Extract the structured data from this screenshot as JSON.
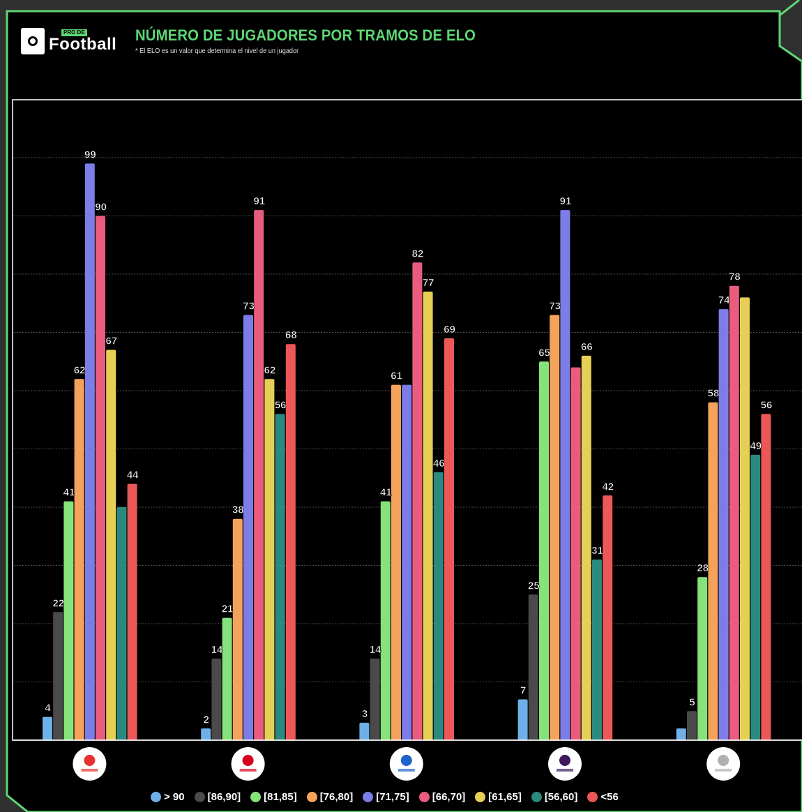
{
  "brand": {
    "name": "Football",
    "tag": "PRO DE"
  },
  "chart_data": {
    "type": "bar",
    "title": "NÚMERO DE JUGADORES POR TRAMOS DE ELO",
    "subtitle": "* El ELO es un valor que determina el nivel de un jugador",
    "xlabel": "",
    "ylabel": "",
    "ylim": [
      0,
      110
    ],
    "grid": true,
    "legend_position": "bottom",
    "categories": [
      "LaLiga Santander",
      "Bundesliga",
      "Serie A",
      "Premier League",
      "Ligue 1"
    ],
    "category_icons": [
      "laliga-logo-icon",
      "bundesliga-logo-icon",
      "serie-a-logo-icon",
      "premier-league-logo-icon",
      "ligue-1-logo-icon"
    ],
    "series": [
      {
        "name": "> 90",
        "color": "#6fb0e8",
        "values": [
          4,
          2,
          3,
          7,
          2
        ]
      },
      {
        "name": "[86,90]",
        "color": "#4a4a4a",
        "values": [
          22,
          14,
          14,
          25,
          5
        ]
      },
      {
        "name": "[81,85]",
        "color": "#86e27a",
        "values": [
          41,
          21,
          41,
          65,
          28
        ]
      },
      {
        "name": "[76,80]",
        "color": "#f5a35a",
        "values": [
          62,
          38,
          61,
          73,
          58
        ]
      },
      {
        "name": "[71,75]",
        "color": "#7d7de8",
        "values": [
          99,
          73,
          61,
          91,
          74
        ]
      },
      {
        "name": "[66,70]",
        "color": "#e95c7e",
        "values": [
          90,
          91,
          82,
          64,
          78
        ]
      },
      {
        "name": "[61,65]",
        "color": "#e6cf55",
        "values": [
          67,
          62,
          77,
          66,
          76
        ]
      },
      {
        "name": "[56,60]",
        "color": "#2a8a80",
        "values": [
          40,
          56,
          46,
          31,
          49
        ]
      },
      {
        "name": "<56",
        "color": "#ec5757",
        "values": [
          44,
          68,
          69,
          42,
          56
        ]
      }
    ],
    "labels": [
      [
        "4",
        "22",
        "41",
        "62",
        "99",
        "90",
        "67",
        "",
        "44"
      ],
      [
        "2",
        "14",
        "21",
        "38",
        "73",
        "91",
        "62",
        "56",
        "68"
      ],
      [
        "3",
        "14",
        "41",
        "61",
        "",
        "82",
        "77",
        "46",
        "69"
      ],
      [
        "7",
        "25",
        "65",
        "73",
        "91",
        "",
        "66",
        "31",
        "42"
      ],
      [
        "",
        "5",
        "28",
        "58",
        "74",
        "78",
        "",
        "49",
        "56"
      ]
    ]
  },
  "colors": {
    "background": "#000000",
    "outer": "#303030",
    "accent": "#5ed674"
  }
}
